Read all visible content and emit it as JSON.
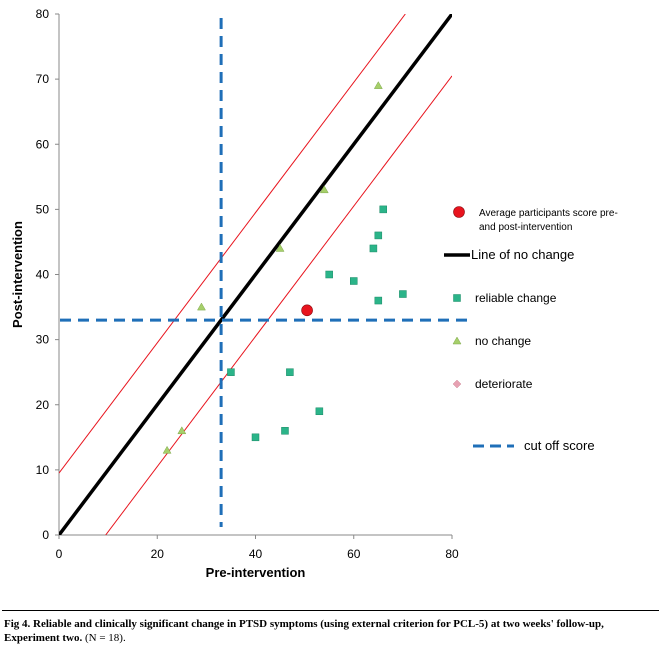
{
  "chart_data": {
    "type": "scatter",
    "xlabel": "Pre-intervention",
    "ylabel": "Post-intervention",
    "xlim": [
      0,
      80
    ],
    "ylim": [
      0,
      80
    ],
    "x_ticks": [
      0,
      20,
      40,
      60,
      80
    ],
    "y_ticks": [
      0,
      10,
      20,
      30,
      40,
      50,
      60,
      70,
      80
    ],
    "grid": false,
    "legend_position": "right",
    "series": [
      {
        "name": "Average participants score pre- and post-intervention",
        "marker": "circle",
        "color": "#e8141e",
        "points": [
          [
            50.5,
            34.5
          ]
        ]
      },
      {
        "name": "reliable change",
        "marker": "square",
        "color": "#2bb489",
        "points": [
          [
            35,
            25
          ],
          [
            40,
            15
          ],
          [
            46,
            16
          ],
          [
            47,
            25
          ],
          [
            53,
            19
          ],
          [
            55,
            40
          ],
          [
            60,
            39
          ],
          [
            64,
            44
          ],
          [
            65,
            46
          ],
          [
            66,
            50
          ],
          [
            65,
            36
          ],
          [
            70,
            37
          ]
        ]
      },
      {
        "name": "no change",
        "marker": "triangle",
        "color": "#a6cf6a",
        "points": [
          [
            22,
            13
          ],
          [
            25,
            16
          ],
          [
            29,
            35
          ],
          [
            45,
            44
          ],
          [
            54,
            53
          ],
          [
            65,
            69
          ]
        ]
      },
      {
        "name": "deteriorate",
        "marker": "diamond",
        "color": "#e7a1b2",
        "points": []
      }
    ],
    "lines": [
      {
        "name": "Line of no change",
        "color": "#000000",
        "points": [
          [
            0,
            0
          ],
          [
            80,
            80
          ]
        ]
      },
      {
        "name": "",
        "color": "#e8141e",
        "points": [
          [
            0,
            9.5
          ],
          [
            70.5,
            80
          ]
        ]
      },
      {
        "name": "",
        "color": "#e8141e",
        "points": [
          [
            9.5,
            0
          ],
          [
            80,
            70.5
          ]
        ]
      }
    ],
    "cutoff": {
      "name": "cut off score",
      "color": "#1f6fb8",
      "x": 33,
      "y": 33
    }
  },
  "caption": {
    "bold": "Fig 4. Reliable and clinically significant change in PTSD symptoms (using external criterion for PCL-5) at two weeks' follow-up, Experiment two.",
    "normal": "(N = 18)."
  }
}
